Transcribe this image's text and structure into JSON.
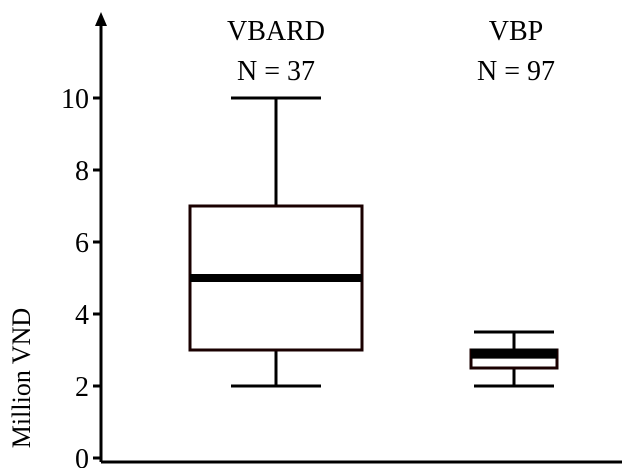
{
  "chart_data": {
    "type": "box",
    "title": "",
    "xlabel": "",
    "ylabel": "Million VND",
    "ylim": [
      0,
      10
    ],
    "yticks": [
      "0",
      "2",
      "4",
      "6",
      "8",
      "10"
    ],
    "grid": false,
    "legend": "none",
    "series": [
      {
        "name": "VBARD",
        "n_label": "N = 37",
        "whisker_low": 2.0,
        "q1": 3.0,
        "median": 5.0,
        "q3": 7.0,
        "whisker_high": 10.0
      },
      {
        "name": "VBP",
        "n_label": "N = 97",
        "whisker_low": 2.0,
        "q1": 2.5,
        "median": 2.9,
        "q3": 3.0,
        "whisker_high": 3.5
      }
    ],
    "colors": {
      "axis": "#000000",
      "box_stroke": "#1a0000",
      "median": "#000000",
      "box_fill": "#ffffff"
    }
  }
}
